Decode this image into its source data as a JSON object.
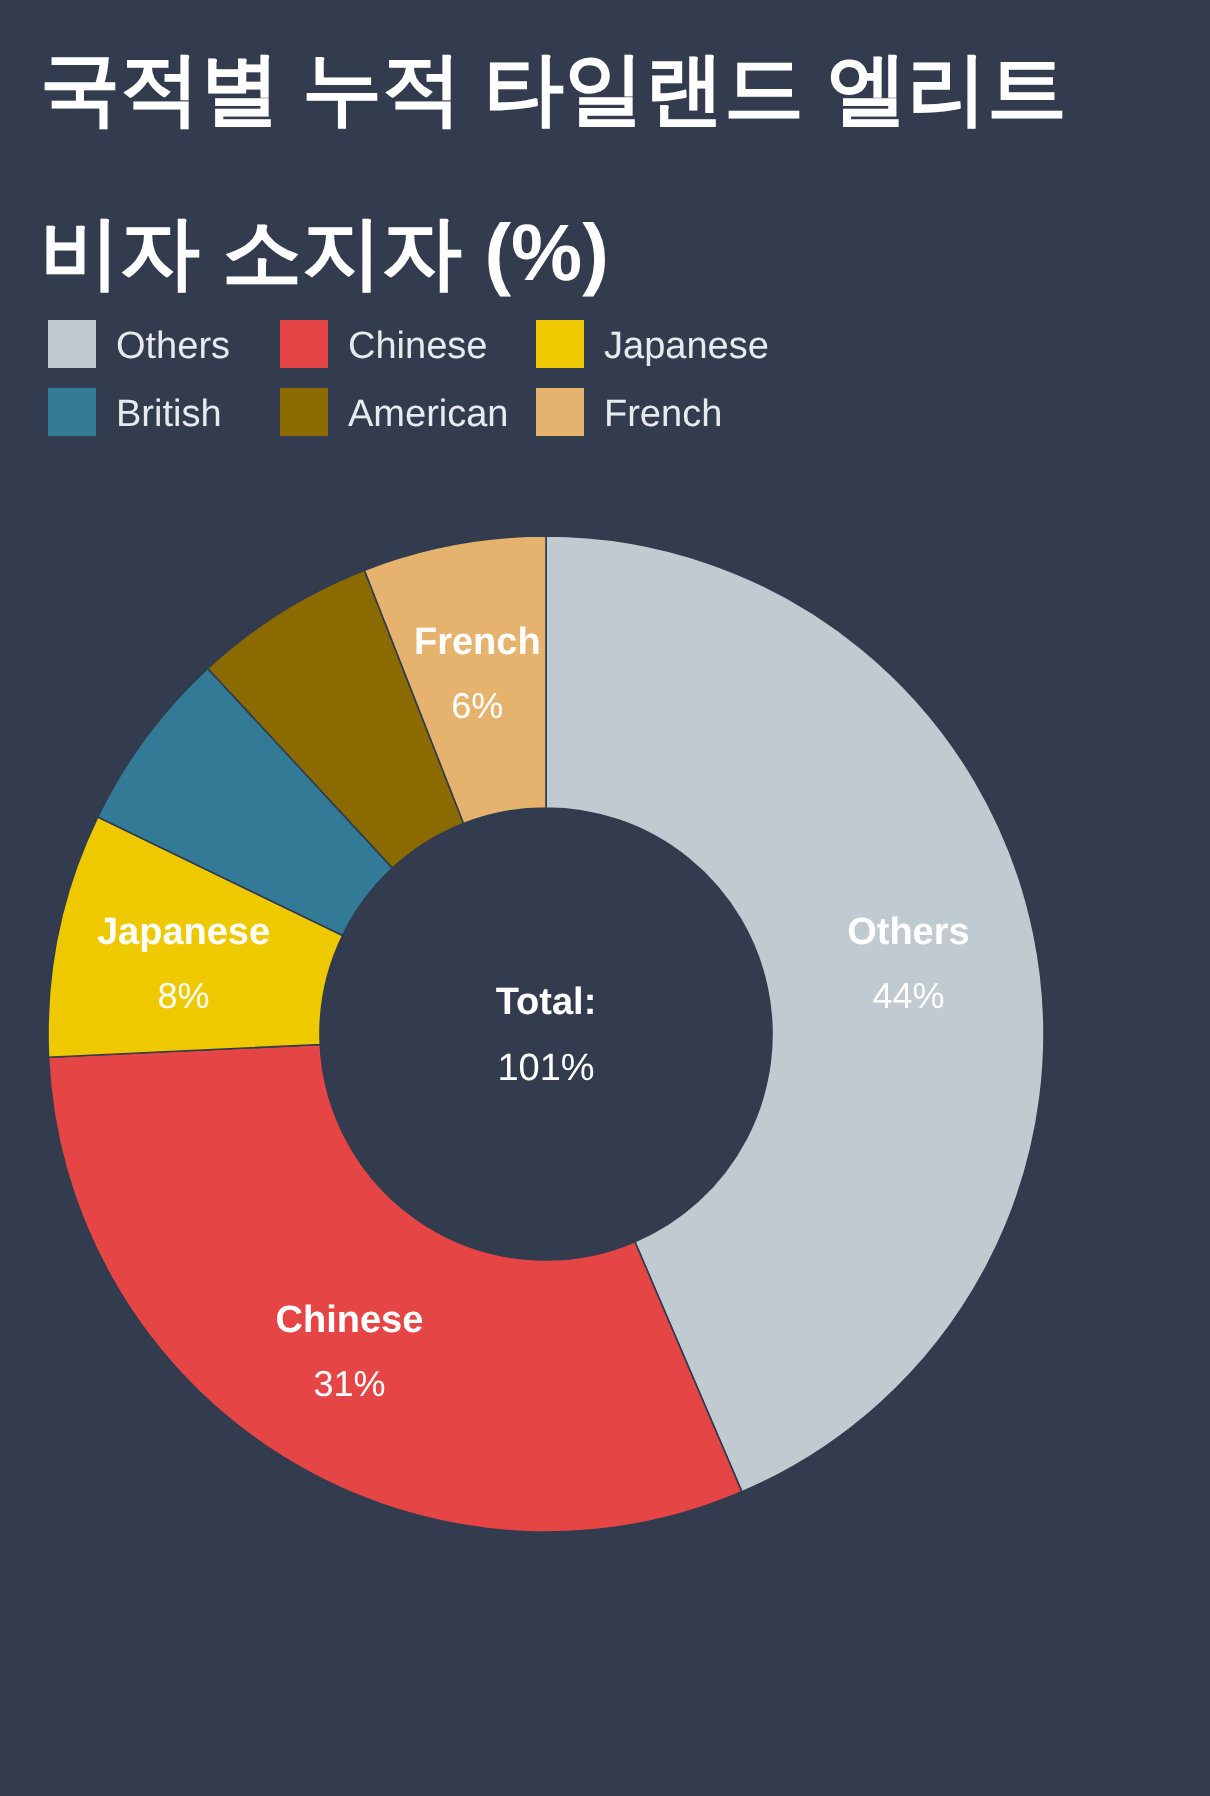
{
  "chart_data": {
    "type": "donut",
    "title": "국적별 누적 타일랜드 엘리트 비자 소지자 (%)",
    "categories": [
      "Others",
      "Chinese",
      "Japanese",
      "British",
      "American",
      "French"
    ],
    "values": [
      44,
      31,
      8,
      6,
      6,
      6
    ],
    "colors": [
      "#bfcbd1",
      "#e64545",
      "#eec900",
      "#327a96",
      "#8b6a00",
      "#e6b36f"
    ],
    "value_labels": [
      "44%",
      "31%",
      "8%",
      null,
      null,
      "6%"
    ],
    "legend": "top left",
    "annotations": [
      "Total:",
      "101%"
    ]
  }
}
